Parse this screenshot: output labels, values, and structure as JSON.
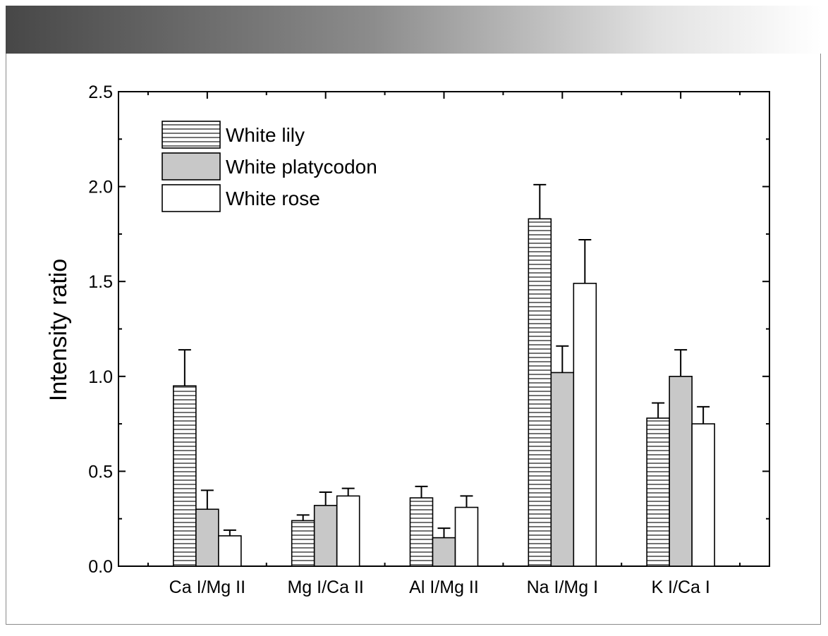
{
  "chart_data": {
    "type": "bar",
    "ylabel": "Intensity ratio",
    "xlabel": "",
    "ylim": [
      0,
      2.5
    ],
    "yticks": [
      "0.0",
      "0.5",
      "1.0",
      "1.5",
      "2.0",
      "2.5"
    ],
    "categories": [
      "Ca I/Mg II",
      "Mg I/Ca II",
      "Al I/Mg II",
      "Na I/Mg I",
      "K I/Ca I"
    ],
    "series": [
      {
        "name": "White lily",
        "fill": "hatch",
        "values": [
          0.95,
          0.24,
          0.36,
          1.83,
          0.78
        ],
        "errors": [
          0.19,
          0.03,
          0.06,
          0.18,
          0.08
        ]
      },
      {
        "name": "White platycodon",
        "fill": "#c8c8c8",
        "values": [
          0.3,
          0.32,
          0.15,
          1.02,
          1.0
        ],
        "errors": [
          0.1,
          0.07,
          0.05,
          0.14,
          0.14
        ]
      },
      {
        "name": "White rose",
        "fill": "#ffffff",
        "values": [
          0.16,
          0.37,
          0.31,
          1.49,
          0.75
        ],
        "errors": [
          0.03,
          0.04,
          0.06,
          0.23,
          0.09
        ]
      }
    ],
    "legend_position": "top-left",
    "grid": false
  }
}
